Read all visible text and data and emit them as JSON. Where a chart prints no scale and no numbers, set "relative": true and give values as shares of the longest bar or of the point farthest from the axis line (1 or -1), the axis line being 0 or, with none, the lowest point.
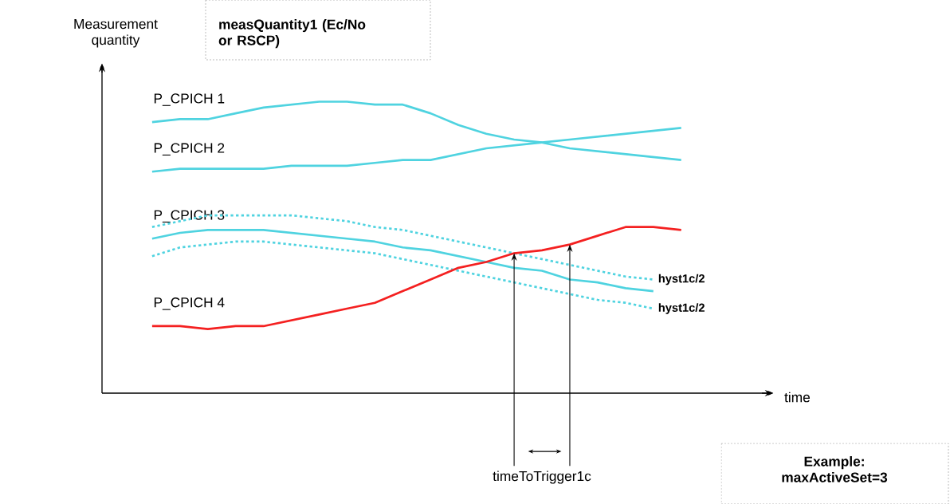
{
  "chart_data": {
    "type": "line",
    "relative": true,
    "xlabel": "time",
    "ylabel": "Measurement quantity",
    "marker": "none",
    "categories": [
      null,
      null,
      null,
      null,
      null,
      null,
      null,
      null,
      null,
      null,
      null,
      null,
      null,
      null,
      null,
      null,
      null,
      null,
      null,
      null,
      null
    ],
    "series": [
      {
        "name": "P_CPICH 1",
        "color": "#4fd3e0",
        "line_style": "solid",
        "values": [
          0.93,
          0.94,
          0.94,
          0.96,
          0.98,
          0.99,
          1.0,
          1.0,
          0.99,
          0.99,
          0.96,
          0.92,
          0.89,
          0.87,
          0.86,
          0.84,
          0.83,
          0.82,
          0.81,
          0.8,
          null
        ]
      },
      {
        "name": "P_CPICH 2",
        "color": "#4fd3e0",
        "line_style": "solid",
        "values": [
          0.76,
          0.77,
          0.77,
          0.77,
          0.77,
          0.78,
          0.78,
          0.78,
          0.79,
          0.8,
          0.8,
          0.82,
          0.84,
          0.85,
          0.86,
          0.87,
          0.88,
          0.89,
          0.9,
          0.91,
          null
        ]
      },
      {
        "name": "P_CPICH 3",
        "color": "#4fd3e0",
        "line_style": "solid",
        "values": [
          0.53,
          0.55,
          0.56,
          0.56,
          0.56,
          0.55,
          0.54,
          0.53,
          0.52,
          0.5,
          0.49,
          0.47,
          0.45,
          0.43,
          0.42,
          0.39,
          0.38,
          0.36,
          0.35,
          null,
          null
        ]
      },
      {
        "color": "#4fd3e0",
        "line_style": "dotted",
        "values": [
          0.57,
          0.59,
          0.61,
          0.61,
          0.61,
          0.61,
          0.6,
          0.59,
          0.57,
          0.56,
          0.54,
          0.52,
          0.5,
          0.48,
          0.46,
          0.44,
          0.42,
          0.4,
          0.39,
          null,
          null
        ]
      },
      {
        "color": "#4fd3e0",
        "line_style": "dotted",
        "values": [
          0.47,
          0.5,
          0.51,
          0.52,
          0.52,
          0.51,
          0.5,
          0.49,
          0.48,
          0.46,
          0.44,
          0.42,
          0.4,
          0.38,
          0.36,
          0.34,
          0.32,
          0.31,
          0.29,
          null,
          null
        ]
      },
      {
        "name": "P_CPICH 4",
        "color": "#f42020",
        "line_style": "solid",
        "values": [
          0.23,
          0.23,
          0.22,
          0.23,
          0.23,
          0.25,
          0.27,
          0.29,
          0.31,
          0.35,
          0.39,
          0.43,
          0.45,
          0.48,
          0.49,
          0.51,
          0.54,
          0.57,
          0.57,
          0.56,
          null
        ]
      }
    ],
    "annotations": [
      "measQuantity1 (Ec/No or RSCP)",
      "hyst1c/2",
      "hyst1c/2",
      "timeToTrigger1c",
      "Example: maxActiveSet=3"
    ]
  }
}
